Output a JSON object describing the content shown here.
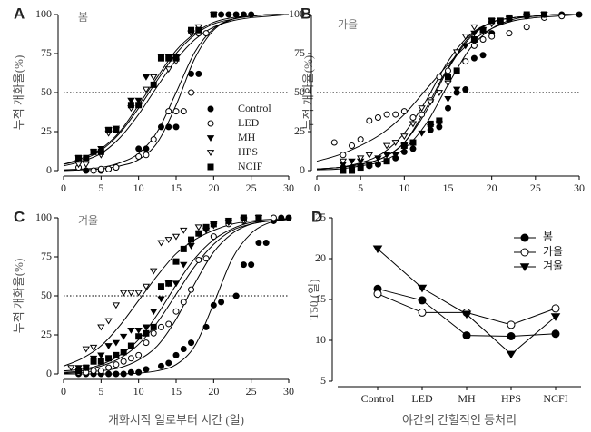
{
  "chart_data": [
    {
      "type": "scatter",
      "label": "A",
      "season": "봄",
      "y_label": "누적 개화율(%)",
      "xlim": [
        0,
        30
      ],
      "ylim": [
        0,
        100
      ],
      "xticks": [
        0,
        5,
        10,
        15,
        20,
        25,
        30
      ],
      "yticks": [
        0,
        25,
        50,
        75,
        100
      ],
      "reference_line": 50,
      "legend": true,
      "curve_x": [
        0,
        2.5,
        5,
        7.5,
        10,
        12.5,
        15,
        17.5,
        20,
        22.5,
        25,
        27.5,
        30
      ],
      "series": [
        {
          "name": "Control",
          "color": "#000000",
          "marker": "circle",
          "marker_fill": "#000000",
          "x": [
            3,
            5,
            6,
            7,
            10,
            11,
            13,
            14,
            15,
            17,
            18,
            20,
            21,
            22,
            23,
            24,
            25
          ],
          "values": [
            0,
            0,
            1,
            2,
            14,
            14,
            28,
            28,
            28,
            62,
            62,
            100,
            100,
            100,
            100,
            100,
            100
          ],
          "curve": [
            0,
            0.5,
            1,
            3,
            7,
            18,
            42,
            72,
            90,
            97,
            99,
            100,
            100
          ]
        },
        {
          "name": "LED",
          "color": "#000000",
          "marker": "circle",
          "marker_fill": "#ffffff",
          "x": [
            2,
            4,
            5,
            6,
            7,
            10,
            11,
            12,
            14,
            15,
            16,
            17,
            18,
            19,
            20
          ],
          "values": [
            2,
            0,
            1,
            1,
            2,
            9,
            10,
            20,
            38,
            38,
            38,
            50,
            88,
            88,
            100
          ],
          "curve": [
            0.5,
            1,
            2,
            5,
            11,
            25,
            50,
            76,
            91,
            97,
            99,
            100,
            100
          ]
        },
        {
          "name": "MH",
          "color": "#000000",
          "marker": "triangle-down",
          "marker_fill": "#000000",
          "x": [
            2,
            4,
            5,
            6,
            7,
            9,
            10,
            11,
            12,
            13,
            14,
            15,
            17,
            18,
            20
          ],
          "values": [
            8,
            12,
            14,
            26,
            27,
            45,
            45,
            60,
            60,
            73,
            73,
            73,
            88,
            92,
            100
          ],
          "curve": [
            4,
            7,
            13,
            24,
            40,
            58,
            75,
            87,
            94,
            97,
            99,
            100,
            100
          ]
        },
        {
          "name": "HPS",
          "color": "#000000",
          "marker": "triangle-down",
          "marker_fill": "#ffffff",
          "x": [
            2,
            3,
            5,
            6,
            7,
            9,
            11,
            12,
            14,
            15,
            17,
            18,
            20
          ],
          "values": [
            4,
            4,
            10,
            24,
            26,
            40,
            52,
            60,
            65,
            70,
            88,
            92,
            100
          ],
          "curve": [
            3,
            6,
            11,
            21,
            36,
            54,
            71,
            84,
            92,
            96,
            98,
            99,
            100
          ]
        },
        {
          "name": "NCIF",
          "color": "#000000",
          "marker": "square",
          "marker_fill": "#000000",
          "x": [
            2,
            3,
            4,
            5,
            6,
            7,
            9,
            10,
            12,
            13,
            14,
            15,
            17,
            18,
            20
          ],
          "values": [
            8,
            8,
            12,
            12,
            26,
            26,
            42,
            42,
            55,
            72,
            72,
            72,
            90,
            90,
            100
          ],
          "curve": [
            4,
            8,
            14,
            25,
            42,
            60,
            77,
            88,
            95,
            98,
            99,
            100,
            100
          ]
        }
      ]
    },
    {
      "type": "scatter",
      "label": "B",
      "season": "가을",
      "y_label": "누적 개화율(%)",
      "xlim": [
        0,
        30
      ],
      "ylim": [
        0,
        100
      ],
      "xticks": [
        0,
        5,
        10,
        15,
        20,
        25,
        30
      ],
      "yticks": [
        0,
        25,
        50,
        75,
        100
      ],
      "reference_line": 50,
      "legend": false,
      "curve_x": [
        0,
        2.5,
        5,
        7.5,
        10,
        12.5,
        15,
        17.5,
        20,
        22.5,
        25,
        27.5,
        30
      ],
      "series": [
        {
          "color": "#000000",
          "marker": "circle",
          "marker_fill": "#000000",
          "x": [
            3,
            4,
            5,
            6,
            7,
            8,
            9,
            10,
            11,
            13,
            14,
            15,
            16,
            17,
            18,
            19,
            20,
            21,
            22,
            24,
            26,
            28,
            30
          ],
          "values": [
            2,
            2,
            3,
            3,
            4,
            6,
            8,
            12,
            14,
            26,
            28,
            40,
            50,
            52,
            72,
            74,
            88,
            95,
            97,
            99,
            100,
            100,
            100
          ],
          "curve": [
            0.5,
            1,
            3,
            6,
            14,
            30,
            55,
            78,
            91,
            97,
            99,
            100,
            100
          ]
        },
        {
          "color": "#000000",
          "marker": "circle",
          "marker_fill": "#ffffff",
          "x": [
            2,
            3,
            4,
            5,
            6,
            7,
            8,
            9,
            10,
            11,
            12,
            13,
            14,
            15,
            17,
            18,
            19,
            20,
            22,
            24,
            26,
            28
          ],
          "values": [
            18,
            10,
            16,
            20,
            32,
            34,
            36,
            36,
            38,
            34,
            36,
            45,
            60,
            64,
            70,
            80,
            84,
            86,
            88,
            92,
            98,
            99
          ],
          "curve": [
            6,
            10,
            16,
            24,
            36,
            52,
            68,
            82,
            91,
            96,
            98,
            99,
            100
          ]
        },
        {
          "color": "#000000",
          "marker": "triangle-down",
          "marker_fill": "#000000",
          "x": [
            3,
            4,
            5,
            7,
            8,
            9,
            10,
            12,
            13,
            14,
            15,
            16,
            17,
            18,
            19,
            20,
            22,
            24,
            26
          ],
          "values": [
            4,
            6,
            6,
            8,
            10,
            10,
            16,
            24,
            28,
            30,
            46,
            52,
            80,
            88,
            90,
            96,
            98,
            99,
            100
          ],
          "curve": [
            1,
            2,
            4,
            8,
            18,
            38,
            65,
            85,
            95,
            98,
            99,
            100,
            100
          ]
        },
        {
          "color": "#000000",
          "marker": "triangle-down",
          "marker_fill": "#ffffff",
          "x": [
            3,
            5,
            6,
            8,
            9,
            10,
            11,
            12,
            13,
            14,
            15,
            16,
            17,
            18,
            20,
            22,
            24
          ],
          "values": [
            6,
            8,
            10,
            16,
            18,
            22,
            30,
            40,
            44,
            50,
            56,
            76,
            86,
            92,
            94,
            97,
            99
          ],
          "curve": [
            1,
            2,
            5,
            11,
            24,
            45,
            70,
            87,
            95,
            98,
            99,
            100,
            100
          ]
        },
        {
          "color": "#000000",
          "marker": "square",
          "marker_fill": "#000000",
          "x": [
            3,
            4,
            5,
            6,
            8,
            10,
            11,
            13,
            14,
            15,
            16,
            18,
            19,
            20,
            21,
            22,
            24,
            26
          ],
          "values": [
            0,
            0,
            2,
            4,
            6,
            16,
            18,
            30,
            32,
            60,
            64,
            84,
            90,
            96,
            96,
            98,
            100,
            100
          ],
          "curve": [
            1,
            2,
            4,
            8,
            18,
            40,
            66,
            86,
            95,
            98,
            99,
            100,
            100
          ]
        }
      ]
    },
    {
      "type": "scatter",
      "label": "C",
      "season": "겨울",
      "y_label": "누적 개화율(%)",
      "x_label": "개화시작 일로부터 시간 (일)",
      "xlim": [
        0,
        30
      ],
      "ylim": [
        0,
        100
      ],
      "xticks": [
        0,
        5,
        10,
        15,
        20,
        25,
        30
      ],
      "yticks": [
        0,
        25,
        50,
        75,
        100
      ],
      "reference_line": 50,
      "legend": false,
      "curve_x": [
        0,
        2.5,
        5,
        7.5,
        10,
        12.5,
        15,
        17.5,
        20,
        22.5,
        25,
        27.5,
        30
      ],
      "series": [
        {
          "color": "#000000",
          "marker": "circle",
          "marker_fill": "#000000",
          "x": [
            2,
            3,
            4,
            5,
            6,
            7,
            8,
            9,
            10,
            11,
            13,
            14,
            15,
            16,
            17,
            19,
            20,
            21,
            23,
            24,
            25,
            26,
            27,
            28,
            29,
            30
          ],
          "values": [
            0,
            0,
            0,
            0,
            0,
            0,
            0,
            1,
            1,
            3,
            5,
            7,
            12,
            16,
            20,
            30,
            44,
            46,
            50,
            70,
            70,
            84,
            84,
            98,
            100,
            100
          ],
          "curve": [
            0,
            0,
            0,
            0,
            0.5,
            2,
            6,
            18,
            45,
            74,
            90,
            97,
            99
          ]
        },
        {
          "color": "#000000",
          "marker": "circle",
          "marker_fill": "#ffffff",
          "x": [
            2,
            3,
            4,
            5,
            6,
            7,
            8,
            9,
            10,
            11,
            12,
            13,
            14,
            15,
            16,
            17,
            18,
            19,
            20,
            22,
            24,
            26,
            28
          ],
          "values": [
            1,
            1,
            2,
            2,
            4,
            6,
            8,
            10,
            12,
            20,
            26,
            30,
            32,
            40,
            46,
            54,
            73,
            74,
            88,
            96,
            98,
            100,
            100
          ],
          "curve": [
            0.5,
            1,
            2,
            4,
            9,
            18,
            35,
            58,
            78,
            90,
            96,
            98,
            99
          ]
        },
        {
          "color": "#000000",
          "marker": "triangle-down",
          "marker_fill": "#000000",
          "x": [
            2,
            3,
            4,
            5,
            6,
            7,
            8,
            9,
            10,
            11,
            12,
            13,
            14,
            15,
            16,
            17,
            18,
            19,
            20,
            22,
            24,
            26
          ],
          "values": [
            4,
            4,
            10,
            12,
            18,
            20,
            24,
            28,
            28,
            30,
            40,
            48,
            58,
            58,
            70,
            82,
            90,
            92,
            96,
            98,
            99,
            100
          ],
          "curve": [
            1,
            2,
            5,
            10,
            19,
            33,
            51,
            69,
            83,
            92,
            96,
            98,
            99
          ]
        },
        {
          "color": "#000000",
          "marker": "triangle-down",
          "marker_fill": "#ffffff",
          "x": [
            1,
            3,
            4,
            5,
            6,
            7,
            8,
            9,
            10,
            11,
            12,
            13,
            14,
            15,
            16,
            18,
            20,
            22,
            24,
            26
          ],
          "values": [
            4,
            16,
            17,
            30,
            34,
            44,
            52,
            52,
            52,
            56,
            66,
            84,
            86,
            88,
            92,
            94,
            95,
            97,
            98,
            100
          ],
          "curve": [
            5,
            10,
            18,
            31,
            47,
            63,
            77,
            86,
            92,
            96,
            98,
            99,
            99.5
          ]
        },
        {
          "color": "#000000",
          "marker": "square",
          "marker_fill": "#000000",
          "x": [
            2,
            3,
            4,
            5,
            6,
            7,
            8,
            9,
            10,
            11,
            12,
            13,
            14,
            15,
            16,
            17,
            18,
            19,
            20,
            22,
            24,
            26
          ],
          "values": [
            2,
            4,
            8,
            8,
            10,
            12,
            14,
            18,
            24,
            26,
            30,
            56,
            58,
            72,
            80,
            86,
            90,
            94,
            96,
            98,
            100,
            100
          ],
          "curve": [
            2,
            3,
            6,
            12,
            22,
            38,
            57,
            74,
            86,
            93,
            97,
            98,
            99
          ]
        }
      ]
    },
    {
      "type": "line",
      "label": "D",
      "y_label": "T50 (일)",
      "x_label": "야간의 간헐적인 등처리",
      "categories": [
        "Control",
        "LED",
        "MH",
        "HPS",
        "NCFI"
      ],
      "ylim": [
        5,
        25
      ],
      "yticks": [
        5,
        10,
        15,
        20,
        25
      ],
      "legend": true,
      "series": [
        {
          "name": "봄",
          "color": "#000000",
          "marker": "circle",
          "marker_fill": "#000000",
          "values": [
            16.3,
            14.9,
            10.6,
            10.5,
            10.8
          ]
        },
        {
          "name": "가을",
          "color": "#000000",
          "marker": "circle",
          "marker_fill": "#ffffff",
          "values": [
            15.7,
            13.4,
            13.4,
            11.9,
            13.9
          ]
        },
        {
          "name": "겨울",
          "color": "#000000",
          "marker": "triangle-down",
          "marker_fill": "#000000",
          "values": [
            21.2,
            16.4,
            13.2,
            8.3,
            12.9
          ]
        }
      ]
    }
  ]
}
